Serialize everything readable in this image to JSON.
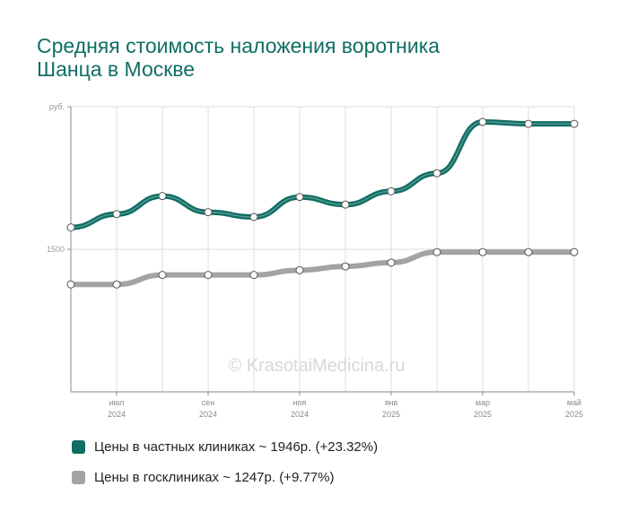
{
  "title_lines": [
    "Средняя стоимость наложения воротника",
    "Шанца в Москве"
  ],
  "watermark": "© KrasotaiMedicina.ru",
  "colors": {
    "title": "#0f6e64",
    "private": "#0f6e64",
    "public": "#a3a3a3",
    "grid": "#dddddd",
    "axis": "#888888"
  },
  "chart_data": {
    "type": "line",
    "y_unit_label": "руб.",
    "y_tick": "1500",
    "ylim": [
      0,
      3000
    ],
    "x_tick_labels": [
      [
        "",
        ""
      ],
      [
        "июл",
        "2024"
      ],
      [
        "",
        ""
      ],
      [
        "сен",
        "2024"
      ],
      [
        "",
        ""
      ],
      [
        "ноя",
        "2024"
      ],
      [
        "",
        ""
      ],
      [
        "янв",
        "2025"
      ],
      [
        "",
        ""
      ],
      [
        "мар",
        "2025"
      ],
      [
        "",
        ""
      ],
      [
        "май",
        "2025"
      ]
    ],
    "series": [
      {
        "name": "Цены в частных клиниках ~ 1946р. (+23.32%)",
        "values": [
          1730,
          1870,
          2060,
          1890,
          1840,
          2050,
          1970,
          2110,
          2300,
          2840,
          2820,
          2820
        ]
      },
      {
        "name": "Цены в госклиниках ~ 1247р. (+9.77%)",
        "values": [
          1130,
          1130,
          1230,
          1230,
          1230,
          1280,
          1320,
          1360,
          1470,
          1470,
          1470,
          1470
        ]
      }
    ],
    "grid": true,
    "legend": "bottom"
  }
}
